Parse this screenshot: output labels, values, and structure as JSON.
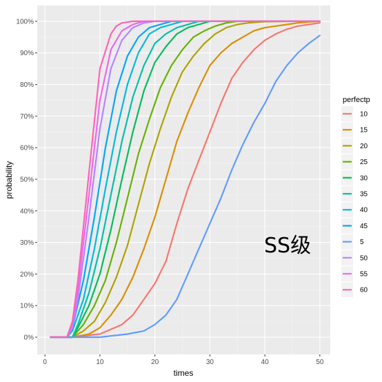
{
  "chart_data": {
    "type": "line",
    "xlabel": "times",
    "ylabel": "probability",
    "xlim": [
      0,
      52
    ],
    "ylim": [
      0,
      1
    ],
    "x_ticks": [
      0,
      10,
      20,
      30,
      40,
      50
    ],
    "y_ticks": [
      0,
      0.1,
      0.2,
      0.3,
      0.4,
      0.5,
      0.6,
      0.7,
      0.8,
      0.9,
      1.0
    ],
    "y_tick_labels": [
      "0%",
      "10%",
      "20%",
      "30%",
      "40%",
      "50%",
      "60%",
      "70%",
      "80%",
      "90%",
      "100%"
    ],
    "grid": true,
    "legend": {
      "title": "perfectp",
      "position": "right",
      "entries": [
        "10",
        "15",
        "20",
        "25",
        "30",
        "35",
        "40",
        "45",
        "5",
        "50",
        "55",
        "60"
      ]
    },
    "annotation": "SS级",
    "series": [
      {
        "name": "10",
        "color": "#F8766D",
        "x": [
          1,
          5,
          10,
          14,
          16,
          18,
          20,
          22,
          24,
          26,
          28,
          30,
          32,
          34,
          36,
          38,
          40,
          42,
          44,
          46,
          48,
          50
        ],
        "y": [
          0,
          0,
          0.01,
          0.04,
          0.07,
          0.12,
          0.17,
          0.24,
          0.36,
          0.47,
          0.56,
          0.65,
          0.74,
          0.82,
          0.87,
          0.91,
          0.94,
          0.96,
          0.975,
          0.985,
          0.99,
          0.995
        ]
      },
      {
        "name": "15",
        "color": "#DB8E00",
        "x": [
          1,
          5,
          8,
          10,
          12,
          14,
          16,
          18,
          20,
          22,
          24,
          26,
          28,
          30,
          32,
          34,
          36,
          38,
          40,
          42,
          44,
          46,
          48,
          50
        ],
        "y": [
          0,
          0,
          0.01,
          0.03,
          0.07,
          0.12,
          0.19,
          0.28,
          0.38,
          0.5,
          0.62,
          0.71,
          0.79,
          0.86,
          0.9,
          0.93,
          0.95,
          0.97,
          0.98,
          0.985,
          0.99,
          0.995,
          0.998,
          1.0
        ]
      },
      {
        "name": "20",
        "color": "#AEA200",
        "x": [
          1,
          5,
          7,
          9,
          11,
          13,
          15,
          17,
          19,
          21,
          23,
          25,
          27,
          29,
          31,
          33,
          35,
          37,
          40,
          45,
          50
        ],
        "y": [
          0,
          0,
          0.02,
          0.05,
          0.11,
          0.19,
          0.29,
          0.42,
          0.55,
          0.66,
          0.76,
          0.84,
          0.89,
          0.93,
          0.96,
          0.98,
          0.99,
          0.995,
          0.999,
          1.0,
          1.0
        ]
      },
      {
        "name": "25",
        "color": "#64B200",
        "x": [
          1,
          5,
          7,
          9,
          11,
          13,
          15,
          17,
          19,
          21,
          23,
          25,
          27,
          29,
          31,
          33,
          35,
          40,
          45,
          50
        ],
        "y": [
          0,
          0,
          0.04,
          0.1,
          0.18,
          0.3,
          0.44,
          0.58,
          0.69,
          0.79,
          0.86,
          0.91,
          0.95,
          0.97,
          0.985,
          0.995,
          1.0,
          1.0,
          1.0,
          1.0
        ]
      },
      {
        "name": "30",
        "color": "#00BD5C",
        "x": [
          1,
          5,
          6,
          8,
          10,
          12,
          14,
          16,
          18,
          20,
          22,
          24,
          26,
          28,
          30,
          35,
          40,
          45,
          50
        ],
        "y": [
          0,
          0,
          0.03,
          0.1,
          0.2,
          0.34,
          0.5,
          0.65,
          0.78,
          0.87,
          0.92,
          0.96,
          0.98,
          0.99,
          1.0,
          1.0,
          1.0,
          1.0,
          1.0
        ]
      },
      {
        "name": "35",
        "color": "#00C1A7",
        "x": [
          1,
          5,
          6,
          8,
          10,
          12,
          14,
          16,
          18,
          20,
          22,
          24,
          26,
          28,
          30,
          35,
          40,
          45,
          50
        ],
        "y": [
          0,
          0,
          0.04,
          0.14,
          0.28,
          0.45,
          0.62,
          0.76,
          0.86,
          0.93,
          0.96,
          0.98,
          0.99,
          1.0,
          1.0,
          1.0,
          1.0,
          1.0,
          1.0
        ]
      },
      {
        "name": "40",
        "color": "#00BADE",
        "x": [
          1,
          4,
          5,
          7,
          9,
          11,
          13,
          15,
          17,
          19,
          21,
          23,
          25,
          30,
          35,
          40,
          45,
          50
        ],
        "y": [
          0,
          0,
          0.02,
          0.12,
          0.28,
          0.47,
          0.65,
          0.8,
          0.9,
          0.96,
          0.98,
          0.99,
          1.0,
          1.0,
          1.0,
          1.0,
          1.0,
          1.0
        ]
      },
      {
        "name": "45",
        "color": "#00A6FF",
        "x": [
          1,
          4,
          5,
          7,
          9,
          11,
          13,
          15,
          17,
          19,
          21,
          23,
          25,
          30,
          35,
          40,
          45,
          50
        ],
        "y": [
          0,
          0,
          0.03,
          0.18,
          0.38,
          0.6,
          0.78,
          0.89,
          0.95,
          0.98,
          0.99,
          1.0,
          1.0,
          1.0,
          1.0,
          1.0,
          1.0,
          1.0
        ]
      },
      {
        "name": "5",
        "color": "#619CFF",
        "x": [
          1,
          5,
          10,
          15,
          18,
          20,
          22,
          24,
          26,
          28,
          30,
          32,
          34,
          36,
          38,
          40,
          42,
          44,
          46,
          48,
          50
        ],
        "y": [
          0,
          0,
          0,
          0.01,
          0.02,
          0.04,
          0.07,
          0.12,
          0.2,
          0.28,
          0.36,
          0.44,
          0.53,
          0.61,
          0.68,
          0.74,
          0.81,
          0.86,
          0.9,
          0.93,
          0.955
        ]
      },
      {
        "name": "50",
        "color": "#B385FF",
        "x": [
          1,
          4,
          5,
          6,
          8,
          10,
          12,
          14,
          16,
          18,
          20,
          25,
          30,
          35,
          40,
          45,
          50
        ],
        "y": [
          0,
          0,
          0.03,
          0.12,
          0.38,
          0.66,
          0.85,
          0.94,
          0.98,
          0.995,
          1.0,
          1.0,
          1.0,
          1.0,
          1.0,
          1.0,
          1.0
        ]
      },
      {
        "name": "55",
        "color": "#EF67EB",
        "x": [
          1,
          4,
          5,
          6,
          8,
          10,
          12,
          14,
          16,
          18,
          20,
          25,
          30,
          35,
          40,
          45,
          50
        ],
        "y": [
          0,
          0,
          0.04,
          0.15,
          0.45,
          0.75,
          0.91,
          0.97,
          0.99,
          1.0,
          1.0,
          1.0,
          1.0,
          1.0,
          1.0,
          1.0,
          1.0
        ]
      },
      {
        "name": "60",
        "color": "#FF63B6",
        "x": [
          1,
          4,
          5,
          6,
          8,
          10,
          12,
          13,
          14,
          16,
          18,
          20,
          25,
          30,
          35,
          40,
          45,
          50
        ],
        "y": [
          0,
          0,
          0.05,
          0.18,
          0.52,
          0.85,
          0.96,
          0.985,
          0.995,
          1.0,
          1.0,
          1.0,
          1.0,
          1.0,
          1.0,
          1.0,
          1.0,
          1.0
        ]
      }
    ]
  }
}
